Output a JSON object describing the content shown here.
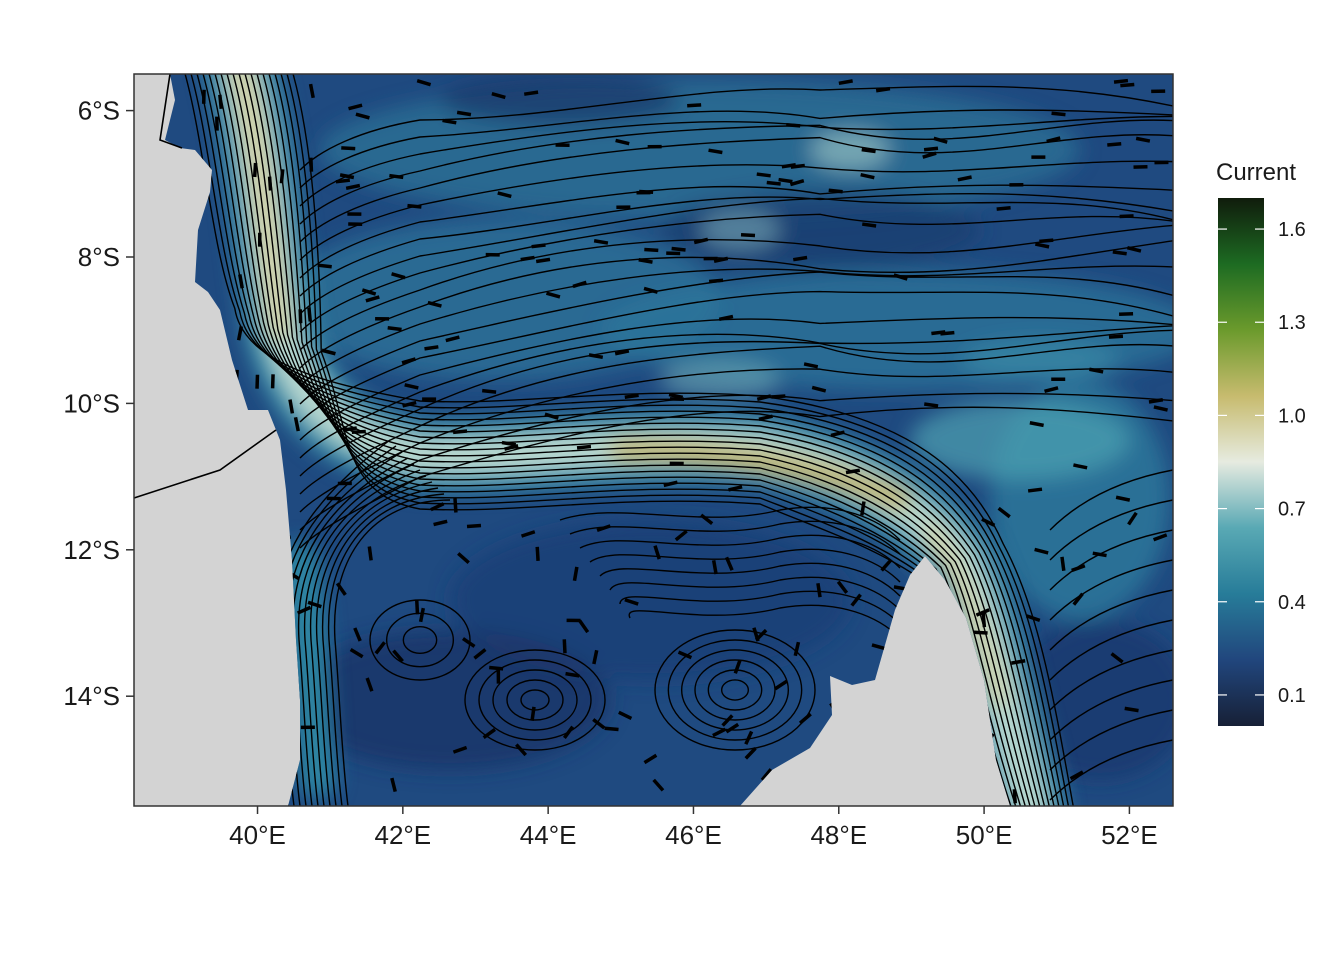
{
  "map": {
    "type": "ocean-current-map",
    "region": {
      "lon_range": [
        38.3,
        52.6
      ],
      "lat_range": [
        -15.5,
        -5.5
      ]
    },
    "background_color": "#d3d3d3",
    "land_color": "#d3d3d3",
    "streamline_color": "#000000",
    "lon_ticks": [
      {
        "value": 40,
        "label": "40°E"
      },
      {
        "value": 42,
        "label": "42°E"
      },
      {
        "value": 44,
        "label": "44°E"
      },
      {
        "value": 46,
        "label": "46°E"
      },
      {
        "value": 48,
        "label": "48°E"
      },
      {
        "value": 50,
        "label": "50°E"
      },
      {
        "value": 52,
        "label": "52°E"
      }
    ],
    "lat_ticks": [
      {
        "value": -6,
        "label": "6°S"
      },
      {
        "value": -8,
        "label": "8°S"
      },
      {
        "value": -10,
        "label": "10°S"
      },
      {
        "value": -12,
        "label": "12°S"
      },
      {
        "value": -14,
        "label": "14°S"
      }
    ]
  },
  "legend": {
    "title": "Current",
    "range": [
      0,
      1.7
    ],
    "ticks": [
      {
        "value": 0.1,
        "label": "0.1"
      },
      {
        "value": 0.4,
        "label": "0.4"
      },
      {
        "value": 0.7,
        "label": "0.7"
      },
      {
        "value": 1.0,
        "label": "1.0"
      },
      {
        "value": 1.3,
        "label": "1.3"
      },
      {
        "value": 1.6,
        "label": "1.6"
      }
    ],
    "colors": [
      "#172036",
      "#21467d",
      "#277c99",
      "#59a9b4",
      "#e6ebe0",
      "#c7bb6e",
      "#6b9a2c",
      "#1d6b22",
      "#101c0c"
    ]
  }
}
